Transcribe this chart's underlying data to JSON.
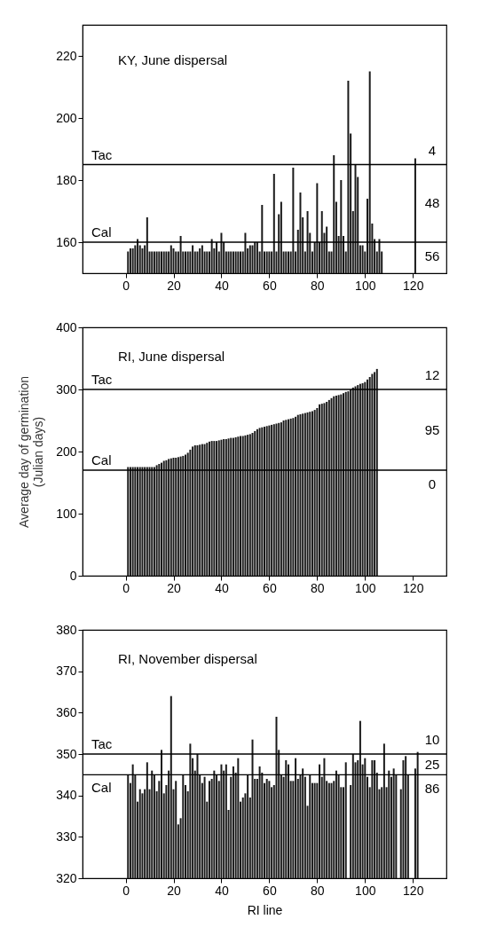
{
  "chart_data": [
    {
      "type": "bar",
      "title": "KY, June dispersal",
      "color": "#1a1a1a",
      "x": [
        1,
        2,
        3,
        4,
        5,
        6,
        7,
        8,
        9,
        10,
        11,
        12,
        13,
        14,
        15,
        16,
        17,
        18,
        19,
        20,
        21,
        22,
        23,
        24,
        25,
        26,
        27,
        28,
        29,
        30,
        31,
        32,
        33,
        34,
        35,
        36,
        37,
        38,
        39,
        40,
        41,
        42,
        43,
        44,
        45,
        46,
        47,
        48,
        49,
        50,
        51,
        52,
        53,
        54,
        55,
        56,
        57,
        58,
        59,
        60,
        61,
        62,
        63,
        64,
        65,
        66,
        67,
        68,
        69,
        70,
        71,
        72,
        73,
        74,
        75,
        76,
        77,
        78,
        79,
        80,
        81,
        82,
        83,
        84,
        85,
        86,
        87,
        88,
        89,
        90,
        91,
        92,
        93,
        94,
        95,
        96,
        97,
        98,
        99,
        100,
        101,
        102,
        103,
        104,
        105,
        106,
        107,
        121
      ],
      "values": [
        157,
        158,
        158,
        159,
        161,
        159,
        158,
        159,
        168,
        157,
        157,
        157,
        157,
        157,
        157,
        157,
        157,
        157,
        159,
        158,
        157,
        157,
        162,
        157,
        157,
        157,
        157,
        159,
        157,
        157,
        158,
        159,
        157,
        157,
        157,
        161,
        158,
        160,
        157,
        163,
        160,
        157,
        157,
        157,
        157,
        157,
        157,
        157,
        157,
        163,
        158,
        159,
        159,
        160,
        160,
        157,
        172,
        157,
        157,
        157,
        157,
        182,
        157,
        169,
        173,
        157,
        157,
        157,
        157,
        184,
        157,
        164,
        176,
        168,
        157,
        170,
        163,
        157,
        160,
        179,
        160,
        170,
        163,
        165,
        157,
        157,
        188,
        173,
        162,
        180,
        162,
        157,
        212,
        195,
        170,
        185,
        181,
        159,
        159,
        157,
        174,
        215,
        166,
        161,
        157,
        161,
        157,
        187
      ],
      "xlim": [
        -18,
        134
      ],
      "ylim": [
        150,
        230
      ],
      "xticks": [
        0,
        20,
        40,
        60,
        80,
        100,
        120
      ],
      "yticks": [
        160,
        180,
        200,
        220
      ],
      "ref_lines": [
        {
          "axis": "y",
          "value": 185,
          "label": "Tac"
        },
        {
          "axis": "y",
          "value": 160,
          "label": "Cal"
        }
      ],
      "annotations": [
        "4",
        "48",
        "56"
      ]
    },
    {
      "type": "bar",
      "title": "RI, June dispersal",
      "color": "#1a1a1a",
      "ylabel": "Average day of germination\n(Julian days)",
      "x": [
        1,
        2,
        3,
        4,
        5,
        6,
        7,
        8,
        9,
        10,
        11,
        12,
        13,
        14,
        15,
        16,
        17,
        18,
        19,
        20,
        21,
        22,
        23,
        24,
        25,
        26,
        27,
        28,
        29,
        30,
        31,
        32,
        33,
        34,
        35,
        36,
        37,
        38,
        39,
        40,
        41,
        42,
        43,
        44,
        45,
        46,
        47,
        48,
        49,
        50,
        51,
        52,
        53,
        54,
        55,
        56,
        57,
        58,
        59,
        60,
        61,
        62,
        63,
        64,
        65,
        66,
        67,
        68,
        69,
        70,
        71,
        72,
        73,
        74,
        75,
        76,
        77,
        78,
        79,
        80,
        81,
        82,
        83,
        84,
        85,
        86,
        87,
        88,
        89,
        90,
        91,
        92,
        93,
        94,
        95,
        96,
        97,
        98,
        99,
        100,
        101,
        102,
        103,
        104,
        105
      ],
      "values": [
        175,
        175,
        175,
        175,
        175,
        175,
        175,
        175,
        175,
        175,
        175,
        175,
        178,
        180,
        182,
        185,
        186,
        188,
        189,
        190,
        190,
        191,
        192,
        193,
        195,
        198,
        203,
        208,
        210,
        210,
        211,
        212,
        212,
        214,
        216,
        217,
        217,
        217,
        218,
        219,
        220,
        220,
        221,
        222,
        222,
        223,
        224,
        225,
        225,
        226,
        227,
        228,
        230,
        233,
        236,
        238,
        239,
        240,
        241,
        242,
        243,
        244,
        245,
        246,
        247,
        250,
        251,
        252,
        253,
        254,
        256,
        259,
        260,
        261,
        262,
        263,
        264,
        265,
        267,
        270,
        276,
        277,
        278,
        280,
        283,
        286,
        289,
        290,
        291,
        292,
        294,
        296,
        297,
        300,
        303,
        305,
        307,
        309,
        310,
        312,
        316,
        320,
        325,
        328,
        333
      ],
      "xlim": [
        -18,
        134
      ],
      "ylim": [
        0,
        400
      ],
      "xticks": [
        0,
        20,
        40,
        60,
        80,
        100,
        120
      ],
      "yticks": [
        0,
        100,
        200,
        300,
        400
      ],
      "ref_lines": [
        {
          "axis": "y",
          "value": 300,
          "label": "Tac"
        },
        {
          "axis": "y",
          "value": 170,
          "label": "Cal"
        }
      ],
      "annotations": [
        "12",
        "95",
        "0"
      ]
    },
    {
      "type": "bar",
      "title": "RI, November dispersal",
      "color": "#1a1a1a",
      "xlabel": "RI line",
      "x": [
        1,
        2,
        3,
        4,
        5,
        6,
        7,
        8,
        9,
        10,
        11,
        12,
        13,
        14,
        15,
        16,
        17,
        18,
        19,
        20,
        21,
        22,
        23,
        24,
        25,
        26,
        27,
        28,
        29,
        30,
        31,
        32,
        33,
        34,
        35,
        36,
        37,
        38,
        39,
        40,
        41,
        42,
        43,
        44,
        45,
        46,
        47,
        48,
        49,
        50,
        51,
        52,
        53,
        54,
        55,
        56,
        57,
        58,
        59,
        60,
        61,
        62,
        63,
        64,
        65,
        66,
        67,
        68,
        69,
        70,
        71,
        72,
        73,
        74,
        75,
        76,
        77,
        78,
        79,
        80,
        81,
        82,
        83,
        84,
        85,
        86,
        87,
        88,
        89,
        90,
        91,
        92,
        94,
        95,
        96,
        97,
        98,
        99,
        100,
        101,
        102,
        103,
        104,
        105,
        106,
        107,
        108,
        109,
        110,
        111,
        112,
        113,
        115,
        116,
        117,
        118,
        121,
        122
      ],
      "values": [
        345,
        343,
        347.5,
        345,
        338.5,
        341.5,
        340.5,
        341.5,
        348,
        341.5,
        346,
        345,
        341,
        343.5,
        351,
        340.5,
        342.5,
        346,
        364,
        341.5,
        343.5,
        333,
        334.5,
        345,
        342.5,
        341,
        352.5,
        349,
        346,
        350,
        345,
        343,
        344.5,
        338.5,
        343.5,
        344,
        346,
        345,
        343.5,
        347.5,
        346,
        347.5,
        336.5,
        344.5,
        347,
        345.5,
        349,
        338.5,
        339.5,
        340.5,
        345,
        339.5,
        353.5,
        344,
        344,
        347,
        345.5,
        343,
        344,
        343.5,
        342,
        342.5,
        359,
        351,
        345,
        344.5,
        348.5,
        347.5,
        343.5,
        343.5,
        349,
        344,
        345,
        346.5,
        344.5,
        337.5,
        345,
        343,
        343,
        343,
        347.5,
        344.5,
        349,
        343.5,
        343,
        343,
        343.5,
        346,
        345,
        342,
        342,
        348,
        342.5,
        350,
        348,
        348.5,
        358,
        347.5,
        349,
        344.5,
        342,
        348.5,
        348.5,
        345.5,
        341.5,
        342,
        352.5,
        342,
        346,
        344.5,
        346.5,
        345,
        341.5,
        348.5,
        349.5,
        345,
        346.5,
        350.5
      ],
      "xlim": [
        -18,
        134
      ],
      "ylim": [
        320,
        380
      ],
      "xticks": [
        0,
        20,
        40,
        60,
        80,
        100,
        120
      ],
      "yticks": [
        320,
        330,
        340,
        350,
        360,
        370,
        380
      ],
      "ref_lines": [
        {
          "axis": "y",
          "value": 350,
          "label": "Tac"
        },
        {
          "axis": "y",
          "value": 345,
          "label": "Cal"
        }
      ],
      "annotations": [
        "10",
        "25",
        "86"
      ]
    }
  ]
}
